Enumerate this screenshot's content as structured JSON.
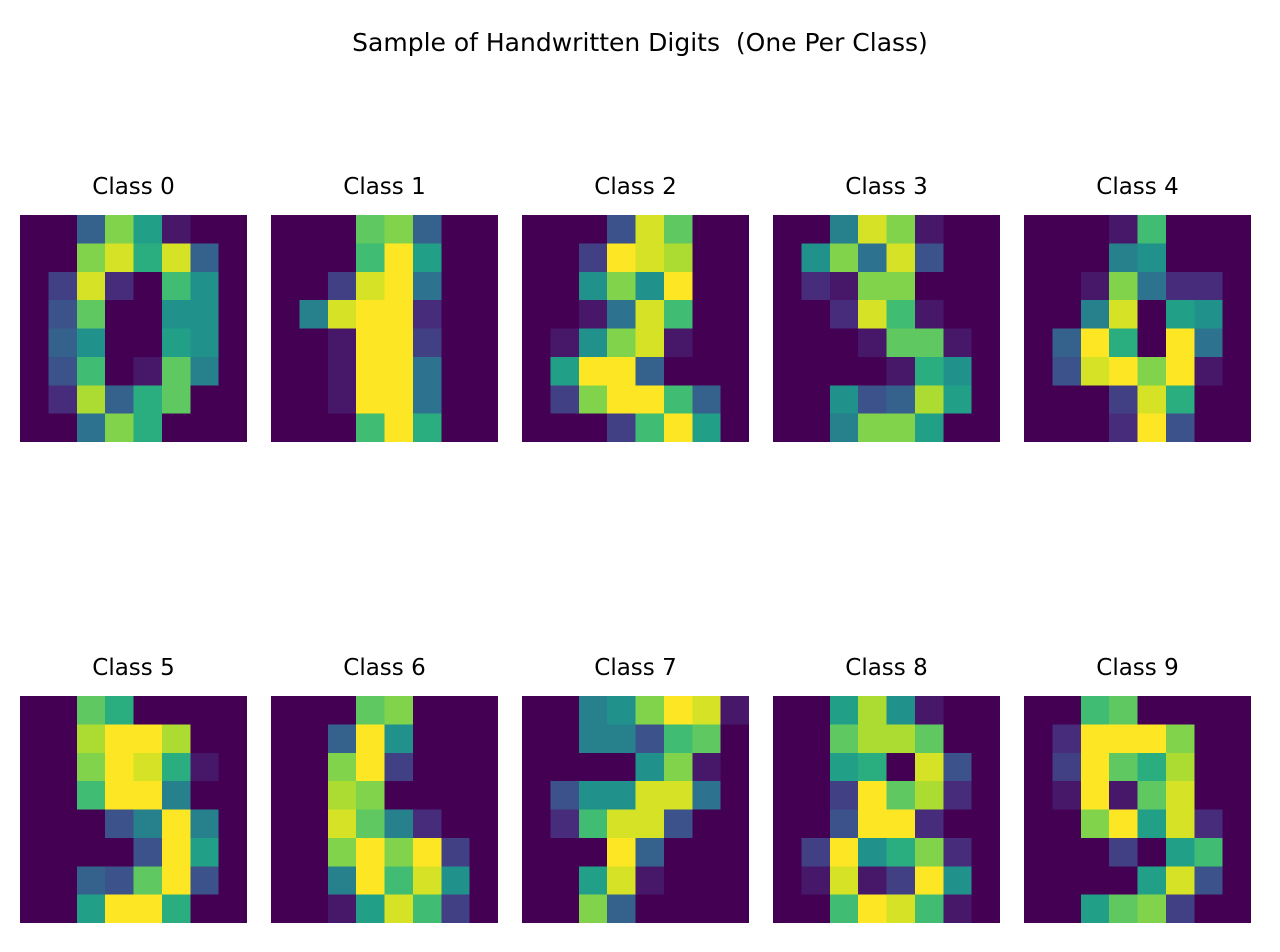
{
  "title": "Sample of Handwritten Digits  (One Per Class)",
  "chart_data": {
    "type": "heatmap",
    "colormap": "viridis",
    "value_range": [
      0,
      16
    ],
    "grid_size": [
      8,
      8
    ],
    "layout": {
      "rows": 2,
      "cols": 5
    },
    "panels": [
      {
        "title": "Class 0",
        "pixels": [
          [
            0,
            0,
            5,
            13,
            9,
            1,
            0,
            0
          ],
          [
            0,
            0,
            13,
            15,
            10,
            15,
            5,
            0
          ],
          [
            0,
            3,
            15,
            2,
            0,
            11,
            8,
            0
          ],
          [
            0,
            4,
            12,
            0,
            0,
            8,
            8,
            0
          ],
          [
            0,
            5,
            8,
            0,
            0,
            9,
            8,
            0
          ],
          [
            0,
            4,
            11,
            0,
            1,
            12,
            7,
            0
          ],
          [
            0,
            2,
            14,
            5,
            10,
            12,
            0,
            0
          ],
          [
            0,
            0,
            6,
            13,
            10,
            0,
            0,
            0
          ]
        ]
      },
      {
        "title": "Class 1",
        "pixels": [
          [
            0,
            0,
            0,
            12,
            13,
            5,
            0,
            0
          ],
          [
            0,
            0,
            0,
            11,
            16,
            9,
            0,
            0
          ],
          [
            0,
            0,
            3,
            15,
            16,
            6,
            0,
            0
          ],
          [
            0,
            7,
            15,
            16,
            16,
            2,
            0,
            0
          ],
          [
            0,
            0,
            1,
            16,
            16,
            3,
            0,
            0
          ],
          [
            0,
            0,
            1,
            16,
            16,
            6,
            0,
            0
          ],
          [
            0,
            0,
            1,
            16,
            16,
            6,
            0,
            0
          ],
          [
            0,
            0,
            0,
            11,
            16,
            10,
            0,
            0
          ]
        ]
      },
      {
        "title": "Class 2",
        "pixels": [
          [
            0,
            0,
            0,
            4,
            15,
            12,
            0,
            0
          ],
          [
            0,
            0,
            3,
            16,
            15,
            14,
            0,
            0
          ],
          [
            0,
            0,
            8,
            13,
            8,
            16,
            0,
            0
          ],
          [
            0,
            0,
            1,
            6,
            15,
            11,
            0,
            0
          ],
          [
            0,
            1,
            8,
            13,
            15,
            1,
            0,
            0
          ],
          [
            0,
            9,
            16,
            16,
            5,
            0,
            0,
            0
          ],
          [
            0,
            3,
            13,
            16,
            16,
            11,
            5,
            0
          ],
          [
            0,
            0,
            0,
            3,
            11,
            16,
            9,
            0
          ]
        ]
      },
      {
        "title": "Class 3",
        "pixels": [
          [
            0,
            0,
            7,
            15,
            13,
            1,
            0,
            0
          ],
          [
            0,
            8,
            13,
            6,
            15,
            4,
            0,
            0
          ],
          [
            0,
            2,
            1,
            13,
            13,
            0,
            0,
            0
          ],
          [
            0,
            0,
            2,
            15,
            11,
            1,
            0,
            0
          ],
          [
            0,
            0,
            0,
            1,
            12,
            12,
            1,
            0
          ],
          [
            0,
            0,
            0,
            0,
            1,
            10,
            8,
            0
          ],
          [
            0,
            0,
            8,
            4,
            5,
            14,
            9,
            0
          ],
          [
            0,
            0,
            7,
            13,
            13,
            9,
            0,
            0
          ]
        ]
      },
      {
        "title": "Class 4",
        "pixels": [
          [
            0,
            0,
            0,
            1,
            11,
            0,
            0,
            0
          ],
          [
            0,
            0,
            0,
            7,
            8,
            0,
            0,
            0
          ],
          [
            0,
            0,
            1,
            13,
            6,
            2,
            2,
            0
          ],
          [
            0,
            0,
            7,
            15,
            0,
            9,
            8,
            0
          ],
          [
            0,
            5,
            16,
            10,
            0,
            16,
            6,
            0
          ],
          [
            0,
            4,
            15,
            16,
            13,
            16,
            1,
            0
          ],
          [
            0,
            0,
            0,
            3,
            15,
            10,
            0,
            0
          ],
          [
            0,
            0,
            0,
            2,
            16,
            4,
            0,
            0
          ]
        ]
      },
      {
        "title": "Class 5",
        "pixels": [
          [
            0,
            0,
            12,
            10,
            0,
            0,
            0,
            0
          ],
          [
            0,
            0,
            14,
            16,
            16,
            14,
            0,
            0
          ],
          [
            0,
            0,
            13,
            16,
            15,
            10,
            1,
            0
          ],
          [
            0,
            0,
            11,
            16,
            16,
            7,
            0,
            0
          ],
          [
            0,
            0,
            0,
            4,
            7,
            16,
            7,
            0
          ],
          [
            0,
            0,
            0,
            0,
            4,
            16,
            9,
            0
          ],
          [
            0,
            0,
            5,
            4,
            12,
            16,
            4,
            0
          ],
          [
            0,
            0,
            9,
            16,
            16,
            10,
            0,
            0
          ]
        ]
      },
      {
        "title": "Class 6",
        "pixels": [
          [
            0,
            0,
            0,
            12,
            13,
            0,
            0,
            0
          ],
          [
            0,
            0,
            5,
            16,
            8,
            0,
            0,
            0
          ],
          [
            0,
            0,
            13,
            16,
            3,
            0,
            0,
            0
          ],
          [
            0,
            0,
            14,
            13,
            0,
            0,
            0,
            0
          ],
          [
            0,
            0,
            15,
            12,
            7,
            2,
            0,
            0
          ],
          [
            0,
            0,
            13,
            16,
            13,
            16,
            3,
            0
          ],
          [
            0,
            0,
            7,
            16,
            11,
            15,
            8,
            0
          ],
          [
            0,
            0,
            1,
            9,
            15,
            11,
            3,
            0
          ]
        ]
      },
      {
        "title": "Class 7",
        "pixels": [
          [
            0,
            0,
            7,
            8,
            13,
            16,
            15,
            1
          ],
          [
            0,
            0,
            7,
            7,
            4,
            11,
            12,
            0
          ],
          [
            0,
            0,
            0,
            0,
            8,
            13,
            1,
            0
          ],
          [
            0,
            4,
            8,
            8,
            15,
            15,
            6,
            0
          ],
          [
            0,
            2,
            11,
            15,
            15,
            4,
            0,
            0
          ],
          [
            0,
            0,
            0,
            16,
            5,
            0,
            0,
            0
          ],
          [
            0,
            0,
            9,
            15,
            1,
            0,
            0,
            0
          ],
          [
            0,
            0,
            13,
            5,
            0,
            0,
            0,
            0
          ]
        ]
      },
      {
        "title": "Class 8",
        "pixels": [
          [
            0,
            0,
            9,
            14,
            8,
            1,
            0,
            0
          ],
          [
            0,
            0,
            12,
            14,
            14,
            12,
            0,
            0
          ],
          [
            0,
            0,
            9,
            10,
            0,
            15,
            4,
            0
          ],
          [
            0,
            0,
            3,
            16,
            12,
            14,
            2,
            0
          ],
          [
            0,
            0,
            4,
            16,
            16,
            2,
            0,
            0
          ],
          [
            0,
            3,
            16,
            8,
            10,
            13,
            2,
            0
          ],
          [
            0,
            1,
            15,
            1,
            3,
            16,
            8,
            0
          ],
          [
            0,
            0,
            11,
            16,
            15,
            11,
            1,
            0
          ]
        ]
      },
      {
        "title": "Class 9",
        "pixels": [
          [
            0,
            0,
            11,
            12,
            0,
            0,
            0,
            0
          ],
          [
            0,
            2,
            16,
            16,
            16,
            13,
            0,
            0
          ],
          [
            0,
            3,
            16,
            12,
            10,
            14,
            0,
            0
          ],
          [
            0,
            1,
            16,
            1,
            12,
            15,
            0,
            0
          ],
          [
            0,
            0,
            13,
            16,
            9,
            15,
            2,
            0
          ],
          [
            0,
            0,
            0,
            3,
            0,
            9,
            11,
            0
          ],
          [
            0,
            0,
            0,
            0,
            9,
            15,
            4,
            0
          ],
          [
            0,
            0,
            9,
            12,
            13,
            3,
            0,
            0
          ]
        ]
      }
    ]
  }
}
